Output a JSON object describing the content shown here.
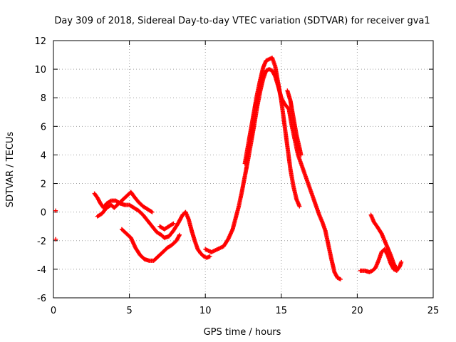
{
  "chart_data": {
    "type": "scatter",
    "title": "Day 309 of 2018, Sidereal Day-to-day VTEC variation (SDTVAR) for receiver gva1",
    "xlabel": "GPS time / hours",
    "ylabel": "SDTVAR / TECUs",
    "xlim": [
      0,
      25
    ],
    "ylim": [
      -6,
      12
    ],
    "xticks": [
      0,
      5,
      10,
      15,
      20,
      25
    ],
    "yticks": [
      -6,
      -4,
      -2,
      0,
      2,
      4,
      6,
      8,
      10,
      12
    ],
    "grid": true,
    "legend": "none",
    "marker": "+",
    "color": "#ff0000",
    "series": [
      {
        "name": "isolated-upper",
        "points": [
          [
            0.15,
            0.1
          ]
        ]
      },
      {
        "name": "isolated-lower",
        "points": [
          [
            0.15,
            -1.9
          ]
        ]
      },
      {
        "name": "arc-a",
        "points": [
          [
            2.7,
            1.3
          ],
          [
            2.9,
            1.0
          ],
          [
            3.1,
            0.6
          ],
          [
            3.3,
            0.3
          ],
          [
            3.5,
            0.6
          ],
          [
            3.8,
            0.8
          ],
          [
            4.1,
            0.8
          ],
          [
            4.4,
            0.6
          ],
          [
            4.7,
            0.5
          ],
          [
            5.0,
            0.5
          ],
          [
            5.3,
            0.3
          ],
          [
            5.6,
            0.1
          ],
          [
            5.9,
            -0.2
          ],
          [
            6.2,
            -0.6
          ],
          [
            6.5,
            -1.0
          ],
          [
            6.8,
            -1.4
          ],
          [
            7.1,
            -1.6
          ],
          [
            7.3,
            -1.8
          ],
          [
            7.6,
            -1.7
          ],
          [
            7.9,
            -1.3
          ],
          [
            8.2,
            -0.8
          ],
          [
            8.5,
            -0.2
          ],
          [
            8.7,
            0.0
          ],
          [
            8.9,
            -0.5
          ],
          [
            9.1,
            -1.3
          ],
          [
            9.3,
            -2.0
          ],
          [
            9.5,
            -2.6
          ],
          [
            9.7,
            -2.9
          ],
          [
            9.9,
            -3.1
          ],
          [
            10.1,
            -3.2
          ],
          [
            10.3,
            -3.1
          ]
        ]
      },
      {
        "name": "arc-b",
        "points": [
          [
            2.9,
            -0.3
          ],
          [
            3.2,
            -0.1
          ],
          [
            3.5,
            0.3
          ],
          [
            3.8,
            0.5
          ],
          [
            4.0,
            0.3
          ],
          [
            4.3,
            0.6
          ],
          [
            4.6,
            0.9
          ],
          [
            4.9,
            1.2
          ],
          [
            5.1,
            1.4
          ],
          [
            5.3,
            1.1
          ],
          [
            5.6,
            0.7
          ],
          [
            5.9,
            0.4
          ],
          [
            6.2,
            0.2
          ],
          [
            6.5,
            0.0
          ]
        ]
      },
      {
        "name": "arc-c",
        "points": [
          [
            4.5,
            -1.2
          ],
          [
            4.8,
            -1.5
          ],
          [
            5.1,
            -1.8
          ],
          [
            5.4,
            -2.5
          ],
          [
            5.7,
            -3.0
          ],
          [
            6.0,
            -3.3
          ],
          [
            6.3,
            -3.4
          ],
          [
            6.6,
            -3.4
          ],
          [
            6.9,
            -3.1
          ],
          [
            7.2,
            -2.8
          ],
          [
            7.5,
            -2.5
          ],
          [
            7.8,
            -2.3
          ],
          [
            8.1,
            -2.0
          ],
          [
            8.3,
            -1.6
          ]
        ]
      },
      {
        "name": "arc-d",
        "points": [
          [
            7.0,
            -1.0
          ],
          [
            7.3,
            -1.2
          ],
          [
            7.6,
            -1.0
          ],
          [
            7.9,
            -0.8
          ]
        ]
      },
      {
        "name": "arc-main",
        "points": [
          [
            10.0,
            -2.6
          ],
          [
            10.4,
            -2.8
          ],
          [
            10.8,
            -2.6
          ],
          [
            11.2,
            -2.4
          ],
          [
            11.5,
            -1.9
          ],
          [
            11.8,
            -1.2
          ],
          [
            12.0,
            -0.4
          ],
          [
            12.2,
            0.4
          ],
          [
            12.4,
            1.4
          ],
          [
            12.6,
            2.5
          ],
          [
            12.8,
            3.6
          ],
          [
            13.0,
            4.8
          ],
          [
            13.2,
            6.0
          ],
          [
            13.4,
            7.3
          ],
          [
            13.6,
            8.4
          ],
          [
            13.8,
            9.3
          ],
          [
            14.0,
            9.9
          ],
          [
            14.2,
            10.0
          ],
          [
            14.4,
            9.9
          ],
          [
            14.6,
            9.5
          ],
          [
            14.8,
            8.8
          ],
          [
            15.0,
            8.0
          ],
          [
            15.2,
            7.6
          ],
          [
            15.5,
            7.2
          ],
          [
            15.7,
            6.0
          ],
          [
            15.9,
            5.0
          ],
          [
            16.1,
            4.0
          ],
          [
            16.3,
            3.4
          ],
          [
            16.5,
            2.8
          ],
          [
            16.7,
            2.2
          ],
          [
            16.9,
            1.6
          ],
          [
            17.1,
            1.0
          ],
          [
            17.3,
            0.4
          ],
          [
            17.5,
            -0.2
          ],
          [
            17.7,
            -0.7
          ],
          [
            17.9,
            -1.3
          ],
          [
            18.1,
            -2.3
          ],
          [
            18.3,
            -3.3
          ],
          [
            18.5,
            -4.2
          ],
          [
            18.7,
            -4.6
          ],
          [
            18.9,
            -4.7
          ]
        ]
      },
      {
        "name": "arc-upper",
        "points": [
          [
            12.6,
            3.4
          ],
          [
            12.8,
            4.6
          ],
          [
            13.0,
            5.8
          ],
          [
            13.2,
            7.0
          ],
          [
            13.4,
            8.2
          ],
          [
            13.6,
            9.2
          ],
          [
            13.8,
            10.1
          ],
          [
            14.0,
            10.6
          ],
          [
            14.2,
            10.7
          ],
          [
            14.4,
            10.8
          ],
          [
            14.6,
            10.2
          ],
          [
            14.8,
            9.0
          ],
          [
            15.0,
            7.8
          ],
          [
            15.2,
            6.2
          ],
          [
            15.4,
            4.6
          ],
          [
            15.6,
            3.0
          ],
          [
            15.8,
            1.8
          ],
          [
            16.0,
            0.9
          ],
          [
            16.2,
            0.4
          ]
        ]
      },
      {
        "name": "arc-tail",
        "points": [
          [
            15.4,
            8.5
          ],
          [
            15.6,
            7.8
          ],
          [
            15.8,
            6.6
          ],
          [
            16.0,
            5.4
          ],
          [
            16.2,
            4.5
          ],
          [
            16.3,
            4.0
          ]
        ]
      },
      {
        "name": "arc-late",
        "points": [
          [
            20.2,
            -4.1
          ],
          [
            20.5,
            -4.1
          ],
          [
            20.8,
            -4.2
          ],
          [
            21.0,
            -4.1
          ],
          [
            21.2,
            -3.9
          ],
          [
            21.4,
            -3.4
          ],
          [
            21.6,
            -2.8
          ],
          [
            21.8,
            -2.6
          ],
          [
            22.0,
            -3.0
          ],
          [
            22.2,
            -3.6
          ],
          [
            22.4,
            -4.0
          ],
          [
            22.6,
            -4.1
          ],
          [
            22.8,
            -3.8
          ],
          [
            22.9,
            -3.5
          ]
        ]
      },
      {
        "name": "arc-late-upper",
        "points": [
          [
            20.9,
            -0.2
          ],
          [
            21.1,
            -0.7
          ],
          [
            21.3,
            -1.0
          ],
          [
            21.6,
            -1.5
          ],
          [
            21.8,
            -2.0
          ],
          [
            22.0,
            -2.5
          ],
          [
            22.2,
            -3.0
          ],
          [
            22.4,
            -3.6
          ],
          [
            22.6,
            -4.0
          ]
        ]
      }
    ]
  }
}
